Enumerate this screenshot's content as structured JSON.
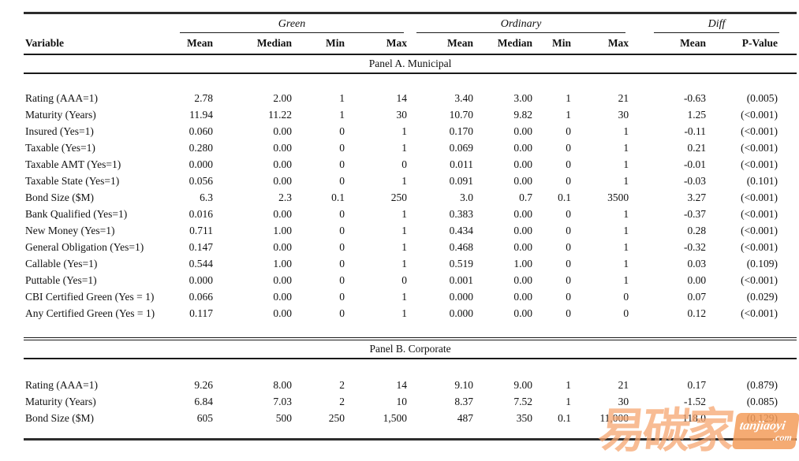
{
  "table": {
    "corner_header": "Variable",
    "groups": [
      {
        "label": "Green",
        "columns": [
          "Mean",
          "Median",
          "Min",
          "Max"
        ]
      },
      {
        "label": "Ordinary",
        "columns": [
          "Mean",
          "Median",
          "Min",
          "Max"
        ]
      },
      {
        "label": "Diff",
        "columns": [
          "Mean",
          "P-Value"
        ]
      }
    ],
    "panels": [
      {
        "title": "Panel A. Municipal",
        "rows": [
          {
            "variable": "Rating (AAA=1)",
            "values": [
              "2.78",
              "2.00",
              "1",
              "14",
              "3.40",
              "3.00",
              "1",
              "21",
              "-0.63",
              "(0.005)"
            ]
          },
          {
            "variable": "Maturity (Years)",
            "values": [
              "11.94",
              "11.22",
              "1",
              "30",
              "10.70",
              "9.82",
              "1",
              "30",
              "1.25",
              "(<0.001)"
            ]
          },
          {
            "variable": "Insured (Yes=1)",
            "values": [
              "0.060",
              "0.00",
              "0",
              "1",
              "0.170",
              "0.00",
              "0",
              "1",
              "-0.11",
              "(<0.001)"
            ]
          },
          {
            "variable": "Taxable (Yes=1)",
            "values": [
              "0.280",
              "0.00",
              "0",
              "1",
              "0.069",
              "0.00",
              "0",
              "1",
              "0.21",
              "(<0.001)"
            ]
          },
          {
            "variable": "Taxable AMT (Yes=1)",
            "values": [
              "0.000",
              "0.00",
              "0",
              "0",
              "0.011",
              "0.00",
              "0",
              "1",
              "-0.01",
              "(<0.001)"
            ]
          },
          {
            "variable": "Taxable State (Yes=1)",
            "values": [
              "0.056",
              "0.00",
              "0",
              "1",
              "0.091",
              "0.00",
              "0",
              "1",
              "-0.03",
              "(0.101)"
            ]
          },
          {
            "variable": "Bond Size ($M)",
            "values": [
              "6.3",
              "2.3",
              "0.1",
              "250",
              "3.0",
              "0.7",
              "0.1",
              "3500",
              "3.27",
              "(<0.001)"
            ]
          },
          {
            "variable": "Bank Qualified (Yes=1)",
            "values": [
              "0.016",
              "0.00",
              "0",
              "1",
              "0.383",
              "0.00",
              "0",
              "1",
              "-0.37",
              "(<0.001)"
            ]
          },
          {
            "variable": "New Money (Yes=1)",
            "values": [
              "0.711",
              "1.00",
              "0",
              "1",
              "0.434",
              "0.00",
              "0",
              "1",
              "0.28",
              "(<0.001)"
            ]
          },
          {
            "variable": "General Obligation (Yes=1)",
            "values": [
              "0.147",
              "0.00",
              "0",
              "1",
              "0.468",
              "0.00",
              "0",
              "1",
              "-0.32",
              "(<0.001)"
            ]
          },
          {
            "variable": "Callable (Yes=1)",
            "values": [
              "0.544",
              "1.00",
              "0",
              "1",
              "0.519",
              "1.00",
              "0",
              "1",
              "0.03",
              "(0.109)"
            ]
          },
          {
            "variable": "Puttable (Yes=1)",
            "values": [
              "0.000",
              "0.00",
              "0",
              "0",
              "0.001",
              "0.00",
              "0",
              "1",
              "0.00",
              "(<0.001)"
            ]
          },
          {
            "variable": "CBI Certified Green (Yes = 1)",
            "values": [
              "0.066",
              "0.00",
              "0",
              "1",
              "0.000",
              "0.00",
              "0",
              "0",
              "0.07",
              "(0.029)"
            ]
          },
          {
            "variable": "Any Certified Green (Yes = 1)",
            "values": [
              "0.117",
              "0.00",
              "0",
              "1",
              "0.000",
              "0.00",
              "0",
              "0",
              "0.12",
              "(<0.001)"
            ]
          }
        ]
      },
      {
        "title": "Panel B. Corporate",
        "rows": [
          {
            "variable": "Rating (AAA=1)",
            "values": [
              "9.26",
              "8.00",
              "2",
              "14",
              "9.10",
              "9.00",
              "1",
              "21",
              "0.17",
              "(0.879)"
            ]
          },
          {
            "variable": "Maturity (Years)",
            "values": [
              "6.84",
              "7.03",
              "2",
              "10",
              "8.37",
              "7.52",
              "1",
              "30",
              "-1.52",
              "(0.085)"
            ]
          },
          {
            "variable": "Bond Size ($M)",
            "values": [
              "605",
              "500",
              "250",
              "1,500",
              "487",
              "350",
              "0.1",
              "11,000",
              "118.0",
              "(0.129)"
            ]
          }
        ]
      }
    ]
  },
  "watermark": {
    "text": "易碳家",
    "badge_line1": "tanjiaoyi",
    "badge_line2": ".com",
    "char_color": "#f5a670",
    "badge_color": "#f39c5a"
  }
}
